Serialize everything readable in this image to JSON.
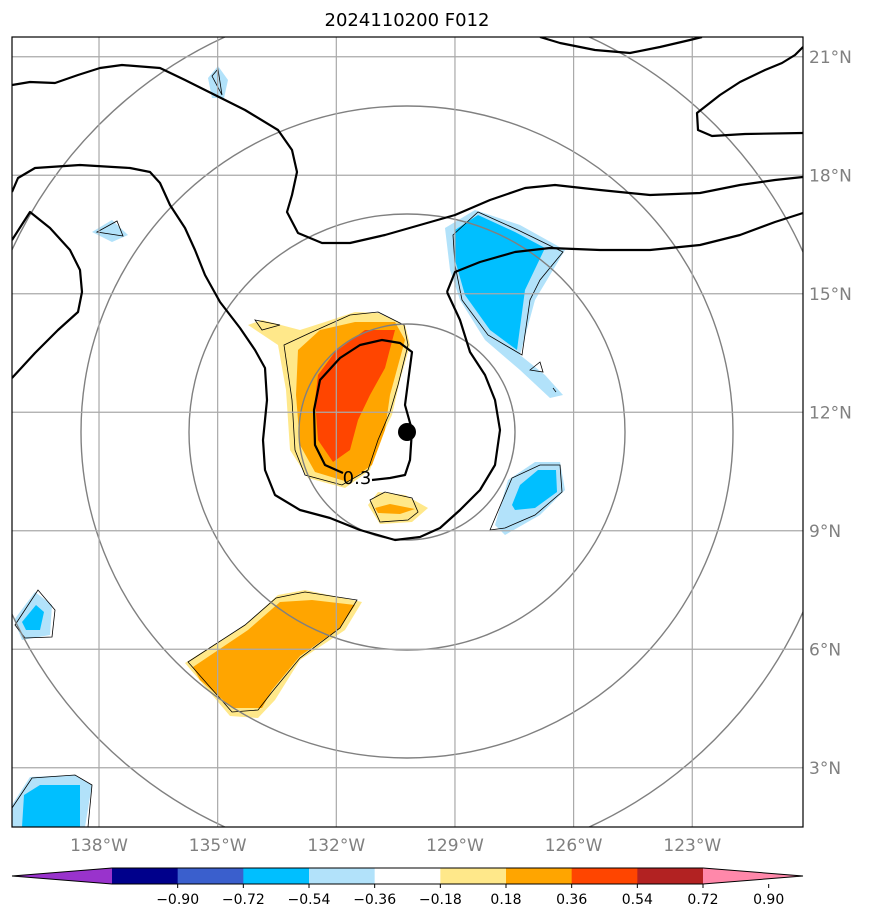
{
  "title": "2024110200 F012",
  "map": {
    "lon_range": [
      -140.2,
      -120.2
    ],
    "lat_range": [
      1.5,
      21.5
    ],
    "lon_ticks": [
      -138,
      -135,
      -132,
      -129,
      -126,
      -123
    ],
    "lat_ticks": [
      3,
      6,
      9,
      12,
      15,
      18,
      21
    ],
    "lon_tick_labels": [
      "138°W",
      "135°W",
      "132°W",
      "129°W",
      "126°W",
      "123°W"
    ],
    "lat_tick_labels": [
      "3°N",
      "6°N",
      "9°N",
      "12°N",
      "15°N",
      "18°N",
      "21°N"
    ],
    "storm_center": {
      "lon": -130.2,
      "lat": 11.4
    },
    "range_rings_deg": [
      2.75,
      5.5,
      8.3,
      11.0
    ],
    "contour_label": "0.3",
    "grid": true
  },
  "colorbar": {
    "labels": [
      "−0.90",
      "−0.72",
      "−0.54",
      "−0.36",
      "−0.18",
      "0.18",
      "0.36",
      "0.54",
      "0.72",
      "0.90"
    ],
    "colors": [
      "#9933cc",
      "#00008b",
      "#3a5fcd",
      "#00bfff",
      "#b2e2fa",
      "#ffffff",
      "#ffe88a",
      "#ffa500",
      "#ff4500",
      "#b22222",
      "#ff88aa"
    ],
    "extend": "both"
  },
  "colors": {
    "grid": "#a9a9a9",
    "rings": "#808080",
    "contour": "#000000"
  }
}
